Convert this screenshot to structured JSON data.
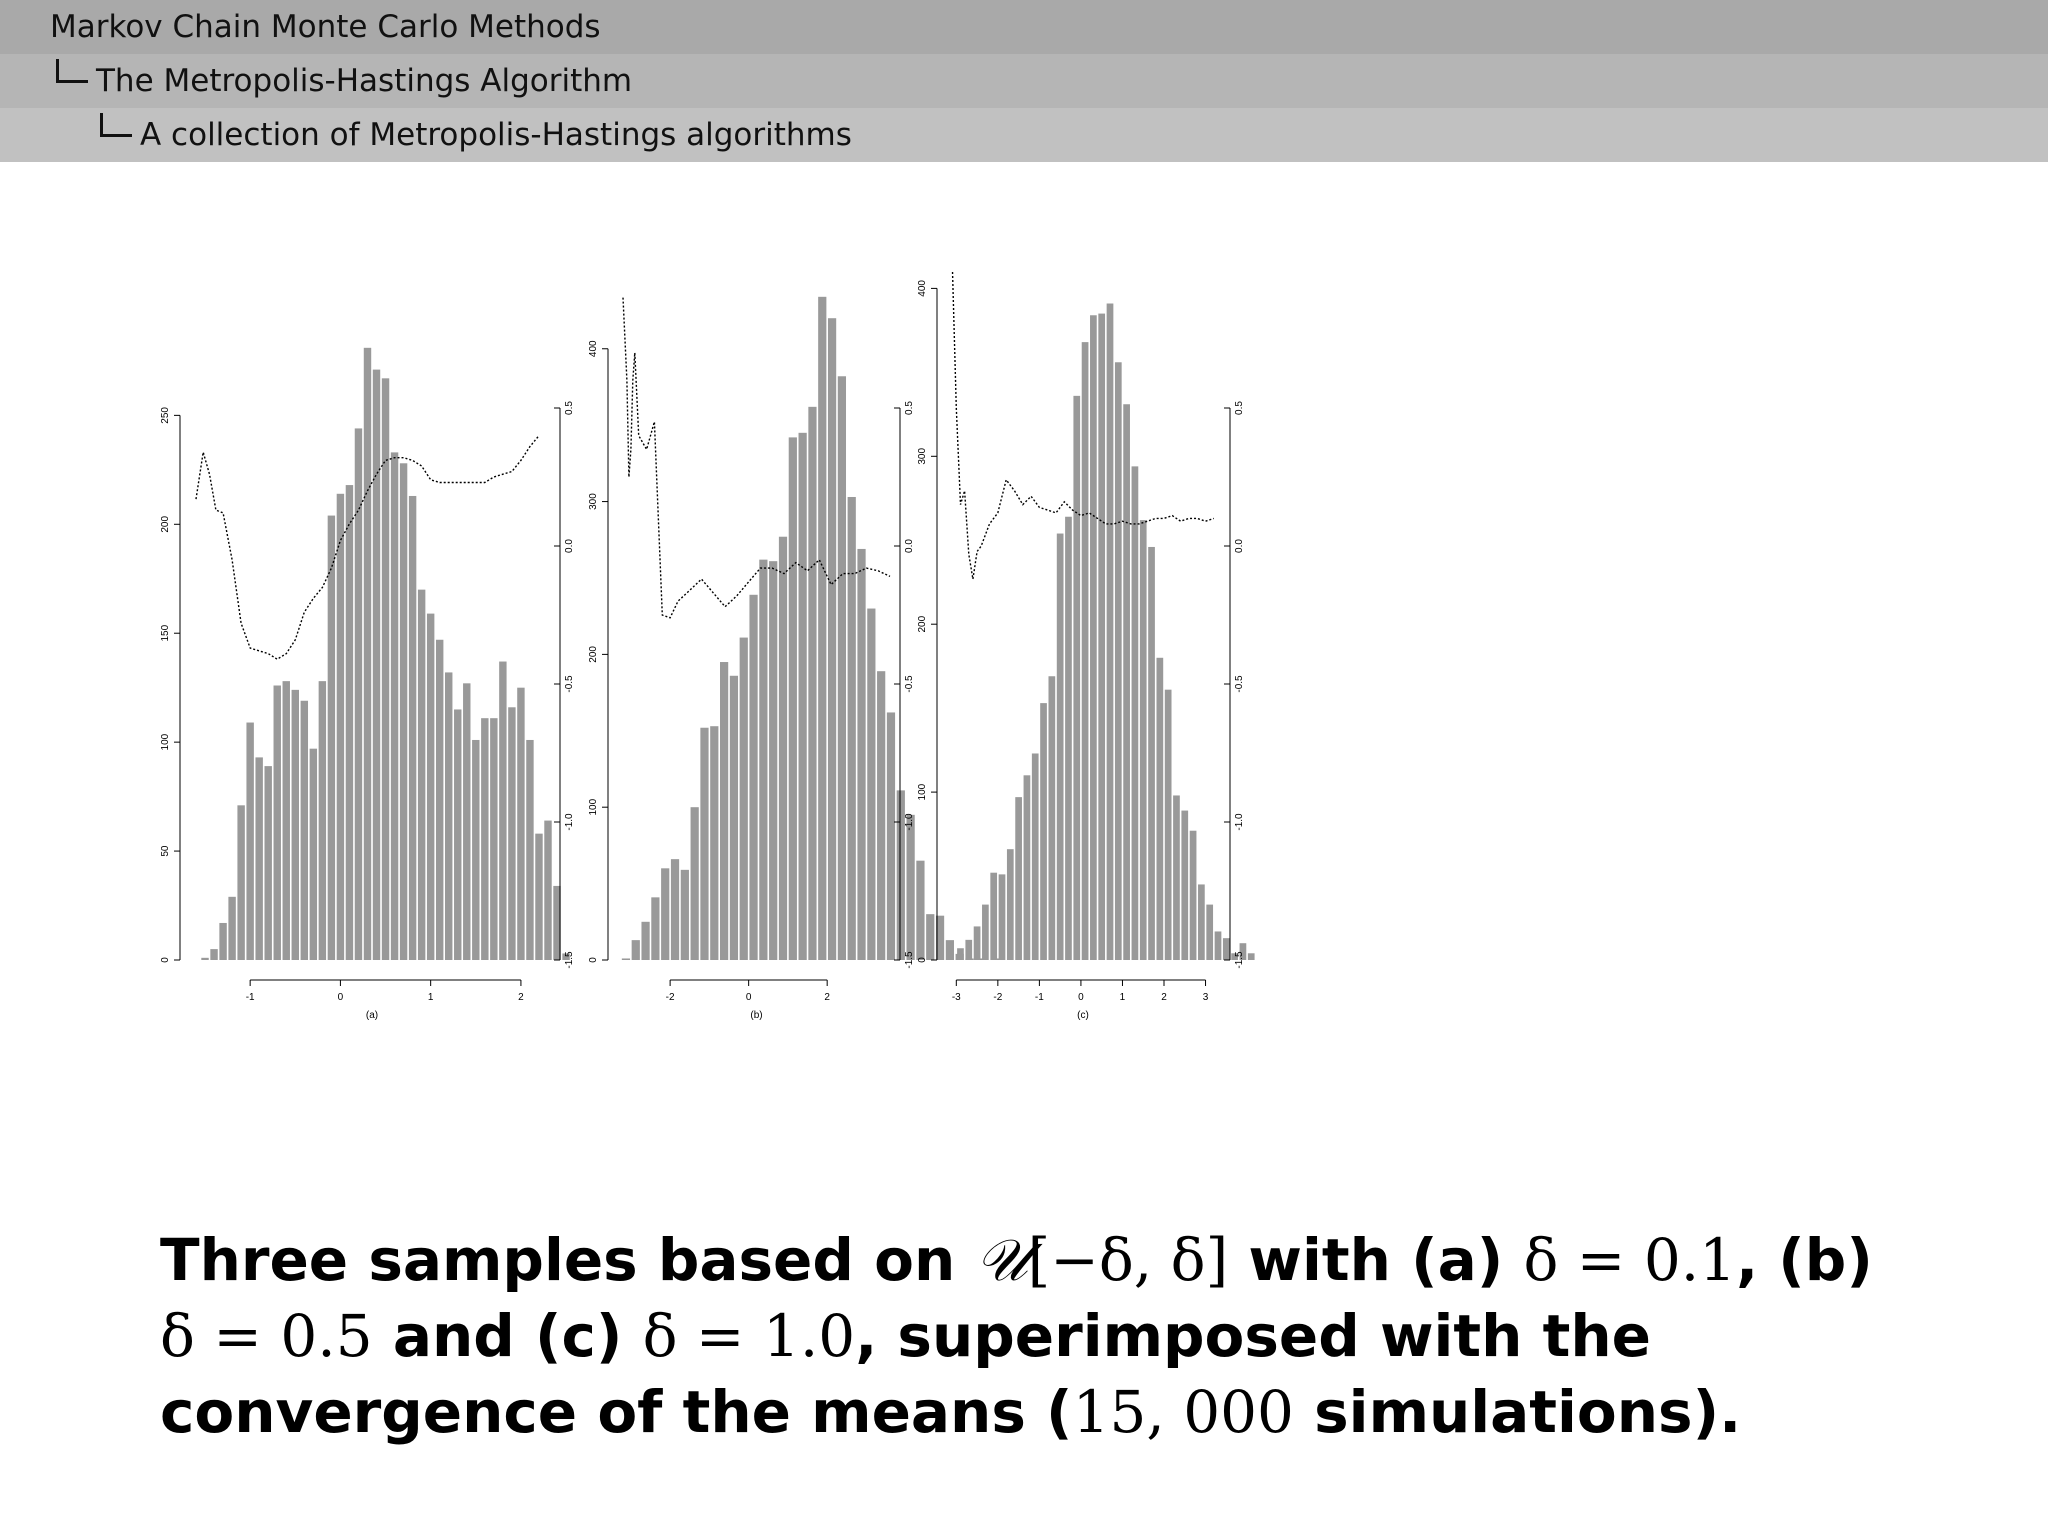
{
  "breadcrumb": {
    "level1": "Markov Chain Monte Carlo Methods",
    "level2": "The Metropolis-Hastings Algorithm",
    "level3": "A collection of Metropolis-Hastings algorithms"
  },
  "caption": {
    "t1": "Three samples based on ",
    "u": "𝒰",
    "uarg": "[−δ, δ]",
    "t2": " with (a) ",
    "a_eq": "δ = 0.1",
    "t3": ", (b) ",
    "b_eq": "δ = 0.5",
    "t4": " and (c) ",
    "c_eq": "δ = 1.0",
    "t5": ", superimposed with the convergence of the means (",
    "n": "15, 000",
    "t6": " simulations)."
  },
  "colors": {
    "bar": "#999999",
    "line": "#000000",
    "axis": "#000000"
  },
  "chart_data": [
    {
      "type": "bar",
      "panel_label": "(a)",
      "x_ticks": [
        -1,
        0,
        1,
        2
      ],
      "x_range": [
        -1.6,
        2.3
      ],
      "y_left_ticks": [
        0,
        50,
        100,
        150,
        200,
        250
      ],
      "y_left_range": [
        0,
        280
      ],
      "y_right_ticks": [
        -1.5,
        -1.0,
        -0.5,
        0.0,
        0.5
      ],
      "y_right_range": [
        -1.5,
        0.5
      ],
      "hist_bin_start": -1.55,
      "hist_bin_width": 0.1,
      "values": [
        1,
        5,
        17,
        29,
        71,
        109,
        93,
        89,
        126,
        128,
        124,
        119,
        97,
        128,
        204,
        214,
        218,
        244,
        281,
        271,
        267,
        233,
        228,
        213,
        170,
        159,
        147,
        132,
        115,
        127,
        101,
        111,
        111,
        137,
        116,
        125,
        101,
        58,
        64,
        34,
        3
      ],
      "mean_line": {
        "name": "running mean",
        "x": [
          -1.6,
          -1.52,
          -1.45,
          -1.38,
          -1.3,
          -1.2,
          -1.1,
          -1.0,
          -0.9,
          -0.8,
          -0.7,
          -0.6,
          -0.5,
          -0.4,
          -0.3,
          -0.2,
          -0.1,
          0.0,
          0.1,
          0.2,
          0.3,
          0.4,
          0.5,
          0.6,
          0.7,
          0.8,
          0.9,
          1.0,
          1.1,
          1.2,
          1.3,
          1.4,
          1.5,
          1.6,
          1.7,
          1.8,
          1.9,
          2.0,
          2.1,
          2.2
        ],
        "y": [
          0.17,
          0.34,
          0.26,
          0.13,
          0.12,
          -0.05,
          -0.28,
          -0.37,
          -0.38,
          -0.39,
          -0.41,
          -0.39,
          -0.34,
          -0.24,
          -0.19,
          -0.15,
          -0.08,
          0.02,
          0.08,
          0.13,
          0.2,
          0.26,
          0.31,
          0.32,
          0.32,
          0.31,
          0.29,
          0.24,
          0.23,
          0.23,
          0.23,
          0.23,
          0.23,
          0.23,
          0.25,
          0.26,
          0.27,
          0.31,
          0.36,
          0.4
        ]
      }
    },
    {
      "type": "bar",
      "panel_label": "(b)",
      "x_ticks": [
        -2,
        0,
        2
      ],
      "x_range": [
        -3.2,
        3.6
      ],
      "y_left_ticks": [
        0,
        100,
        200,
        300,
        400
      ],
      "y_left_range": [
        0,
        445
      ],
      "y_right_ticks": [
        -1.5,
        -1.0,
        -0.5,
        0.0,
        0.5
      ],
      "y_right_range": [
        -1.5,
        0.5
      ],
      "hist_bin_start": -3.25,
      "hist_bin_width": 0.25,
      "values": [
        1,
        13,
        25,
        41,
        60,
        66,
        59,
        100,
        152,
        153,
        195,
        186,
        211,
        239,
        262,
        261,
        277,
        342,
        345,
        362,
        434,
        420,
        382,
        303,
        269,
        230,
        189,
        162,
        111,
        95,
        65,
        30,
        29,
        13,
        4,
        1,
        1,
        0,
        1
      ],
      "mean_line": {
        "name": "running mean",
        "x": [
          -3.2,
          -3.1,
          -3.05,
          -3.0,
          -2.95,
          -2.9,
          -2.8,
          -2.6,
          -2.4,
          -2.2,
          -2.0,
          -1.8,
          -1.5,
          -1.2,
          -0.9,
          -0.6,
          -0.3,
          0.0,
          0.3,
          0.6,
          0.9,
          1.2,
          1.5,
          1.8,
          2.1,
          2.4,
          2.7,
          3.0,
          3.3,
          3.6
        ],
        "y": [
          0.9,
          0.6,
          0.25,
          0.35,
          0.6,
          0.7,
          0.4,
          0.35,
          0.45,
          -0.25,
          -0.26,
          -0.2,
          -0.16,
          -0.12,
          -0.17,
          -0.22,
          -0.18,
          -0.13,
          -0.08,
          -0.08,
          -0.1,
          -0.06,
          -0.09,
          -0.05,
          -0.14,
          -0.1,
          -0.1,
          -0.08,
          -0.09,
          -0.11
        ]
      }
    },
    {
      "type": "bar",
      "panel_label": "(c)",
      "x_ticks": [
        -3,
        -2,
        -1,
        0,
        1,
        2,
        3
      ],
      "x_range": [
        -3.2,
        3.3
      ],
      "y_left_ticks": [
        0,
        100,
        200,
        300,
        400
      ],
      "y_left_range": [
        0,
        405
      ],
      "y_right_ticks": [
        -1.5,
        -1.0,
        -0.5,
        0.0,
        0.5
      ],
      "y_right_range": [
        -1.5,
        0.5
      ],
      "hist_bin_start": -3.0,
      "hist_bin_width": 0.2,
      "values": [
        7,
        12,
        20,
        33,
        52,
        51,
        66,
        97,
        110,
        123,
        153,
        169,
        254,
        264,
        336,
        368,
        384,
        385,
        391,
        356,
        331,
        294,
        262,
        246,
        180,
        161,
        98,
        89,
        77,
        45,
        33,
        17,
        13,
        4,
        10,
        4
      ],
      "mean_line": {
        "name": "running mean",
        "x": [
          -3.1,
          -3.0,
          -2.9,
          -2.8,
          -2.7,
          -2.6,
          -2.5,
          -2.4,
          -2.2,
          -2.0,
          -1.8,
          -1.6,
          -1.4,
          -1.2,
          -1.0,
          -0.8,
          -0.6,
          -0.4,
          -0.2,
          0.0,
          0.2,
          0.4,
          0.6,
          0.8,
          1.0,
          1.2,
          1.4,
          1.6,
          1.8,
          2.0,
          2.2,
          2.4,
          2.6,
          2.8,
          3.0,
          3.2
        ],
        "y": [
          1.2,
          0.5,
          0.15,
          0.2,
          -0.03,
          -0.12,
          -0.02,
          0.0,
          0.08,
          0.12,
          0.24,
          0.2,
          0.15,
          0.18,
          0.14,
          0.13,
          0.12,
          0.16,
          0.13,
          0.11,
          0.12,
          0.1,
          0.08,
          0.08,
          0.09,
          0.08,
          0.08,
          0.09,
          0.1,
          0.1,
          0.11,
          0.09,
          0.1,
          0.1,
          0.09,
          0.1
        ]
      }
    }
  ]
}
